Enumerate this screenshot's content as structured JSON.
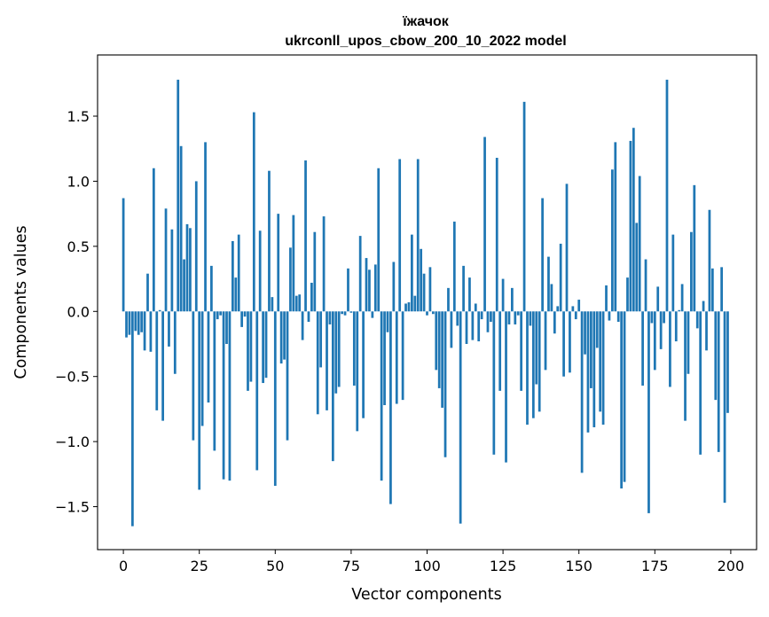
{
  "chart_data": {
    "type": "bar",
    "title": "їжачок",
    "subtitle": "ukrconll_upos_cbow_200_10_2022 model",
    "xlabel": "Vector components",
    "ylabel": "Components values",
    "xlim": [
      -8.5,
      208.5
    ],
    "ylim": [
      -1.83,
      1.97
    ],
    "xticks": [
      0,
      25,
      50,
      75,
      100,
      125,
      150,
      175,
      200
    ],
    "xtick_labels": [
      "0",
      "25",
      "50",
      "75",
      "100",
      "125",
      "150",
      "175",
      "200"
    ],
    "yticks": [
      -1.5,
      -1.0,
      -0.5,
      0.0,
      0.5,
      1.0,
      1.5
    ],
    "ytick_labels": [
      "−1.5",
      "−1.0",
      "−0.5",
      "0.0",
      "0.5",
      "1.0",
      "1.5"
    ],
    "grid": false,
    "bar_color": "#1f77b4",
    "values": [
      0.87,
      -0.2,
      -0.18,
      -1.65,
      -0.15,
      -0.18,
      -0.16,
      -0.3,
      0.29,
      -0.31,
      1.1,
      -0.76,
      0.01,
      -0.84,
      0.79,
      -0.27,
      0.63,
      -0.48,
      1.78,
      1.27,
      0.4,
      0.67,
      0.64,
      -0.99,
      1.0,
      -1.37,
      -0.88,
      1.3,
      -0.7,
      0.35,
      -1.07,
      -0.06,
      -0.03,
      -1.29,
      -0.25,
      -1.3,
      0.54,
      0.26,
      0.59,
      -0.12,
      -0.04,
      -0.61,
      -0.54,
      1.53,
      -1.22,
      0.62,
      -0.55,
      -0.51,
      1.08,
      0.11,
      -1.34,
      0.75,
      -0.4,
      -0.37,
      -0.99,
      0.49,
      0.74,
      0.12,
      0.13,
      -0.22,
      1.16,
      -0.08,
      0.22,
      0.61,
      -0.79,
      -0.43,
      0.73,
      -0.76,
      -0.1,
      -1.15,
      -0.63,
      -0.58,
      -0.02,
      -0.03,
      0.33,
      -0.01,
      -0.57,
      -0.92,
      0.58,
      -0.82,
      0.41,
      0.32,
      -0.05,
      0.36,
      1.1,
      -1.3,
      -0.72,
      -0.16,
      -1.48,
      0.38,
      -0.71,
      1.17,
      -0.68,
      0.06,
      0.07,
      0.59,
      0.12,
      1.17,
      0.48,
      0.29,
      -0.03,
      0.34,
      -0.02,
      -0.45,
      -0.59,
      -0.74,
      -1.12,
      0.18,
      -0.28,
      0.69,
      -0.11,
      -1.63,
      0.35,
      -0.25,
      0.26,
      -0.22,
      0.06,
      -0.23,
      -0.06,
      1.34,
      -0.16,
      -0.08,
      -1.1,
      1.18,
      -0.61,
      0.25,
      -1.16,
      -0.1,
      0.18,
      -0.1,
      -0.03,
      -0.61,
      1.61,
      -0.87,
      -0.11,
      -0.82,
      -0.56,
      -0.77,
      0.87,
      -0.45,
      0.42,
      0.21,
      -0.17,
      0.04,
      0.52,
      -0.5,
      0.98,
      -0.47,
      0.04,
      -0.06,
      0.09,
      -1.24,
      -0.33,
      -0.93,
      -0.59,
      -0.89,
      -0.28,
      -0.77,
      -0.87,
      0.2,
      -0.07,
      1.09,
      1.3,
      -0.08,
      -1.36,
      -1.31,
      0.26,
      1.31,
      1.41,
      0.68,
      1.04,
      -0.57,
      0.4,
      -1.55,
      -0.09,
      -0.45,
      0.19,
      -0.29,
      -0.09,
      1.78,
      -0.58,
      0.59,
      -0.23,
      0.01,
      0.21,
      -0.84,
      -0.48,
      0.61,
      0.97,
      -0.13,
      -1.1,
      0.08,
      -0.3,
      0.78,
      0.33,
      -0.68,
      -1.08,
      0.34,
      -1.47,
      -0.78
    ]
  }
}
